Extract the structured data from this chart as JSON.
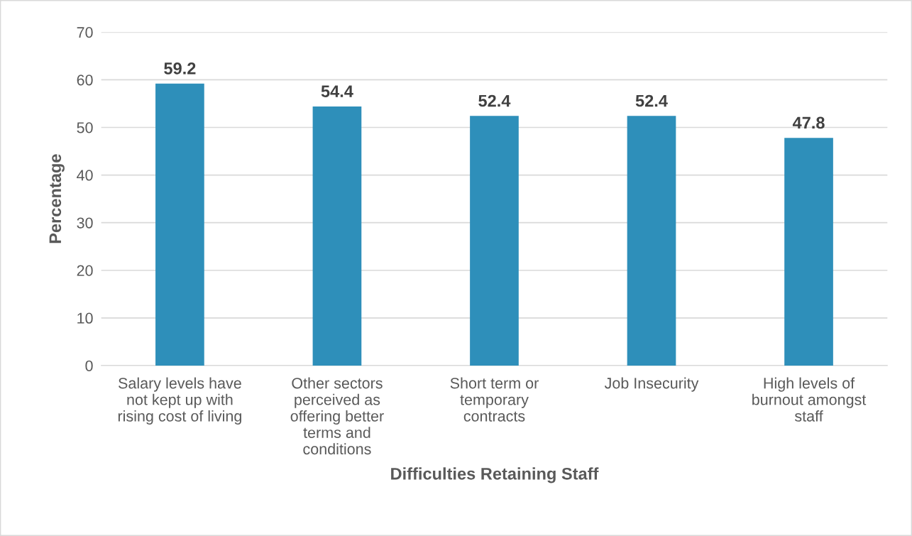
{
  "chart_data": {
    "type": "bar",
    "xlabel": "Difficulties Retaining Staff",
    "ylabel": "Percentage",
    "categories": [
      "Salary levels have\nnot kept up with\nrising cost of living",
      "Other sectors\nperceived as\noffering better\nterms and\nconditions",
      "Short term or\ntemporary\ncontracts",
      "Job Insecurity",
      "High levels of\nburnout amongst\nstaff"
    ],
    "values": [
      59.2,
      54.4,
      52.4,
      52.4,
      47.8
    ],
    "color": "#2e8fba",
    "ylim": [
      0,
      70
    ],
    "yticks": [
      0,
      10,
      20,
      30,
      40,
      50,
      60,
      70
    ],
    "grid": "y",
    "data_labels": true
  }
}
